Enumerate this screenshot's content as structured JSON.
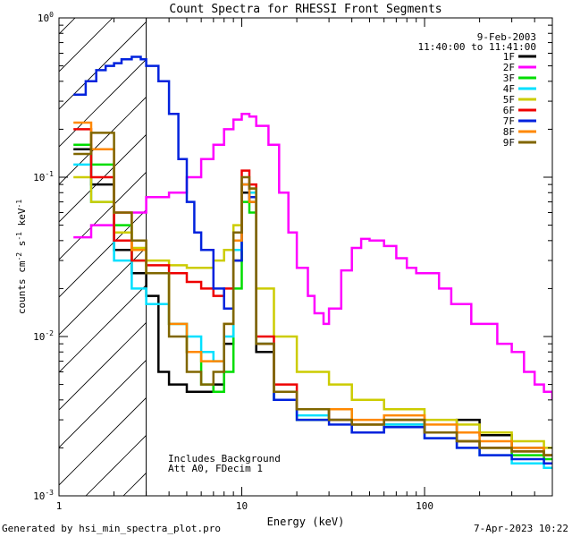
{
  "chart_data": {
    "type": "line",
    "title": "Count Spectra for RHESSI Front Segments",
    "xlabel": "Energy (keV)",
    "ylabel": "counts cm-2 s-1 keV-1",
    "xscale": "log",
    "yscale": "log",
    "xlim": [
      1,
      500
    ],
    "ylim": [
      0.001,
      1
    ],
    "x_ticks": [
      {
        "value": 1,
        "label": "1"
      },
      {
        "value": 10,
        "label": "10"
      },
      {
        "value": 100,
        "label": "100"
      }
    ],
    "y_ticks": [
      {
        "value": 1,
        "mant": "10",
        "exp": "0"
      },
      {
        "value": 0.1,
        "mant": "10",
        "exp": "-1"
      },
      {
        "value": 0.01,
        "mant": "10",
        "exp": "-2"
      },
      {
        "value": 0.001,
        "mant": "10",
        "exp": "-3"
      }
    ],
    "date": "9-Feb-2003",
    "time_range": "11:40:00 to 11:41:00",
    "hatched_region_max_energy": 3,
    "annotations": [
      "Includes Background",
      "Att A0, FDecim 1"
    ],
    "series": [
      {
        "name": "1F",
        "color": "#000000",
        "points": [
          [
            1.2,
            0.15
          ],
          [
            1.5,
            0.09
          ],
          [
            2,
            0.035
          ],
          [
            2.5,
            0.025
          ],
          [
            3,
            0.018
          ],
          [
            3.5,
            0.006
          ],
          [
            4,
            0.005
          ],
          [
            5,
            0.0045
          ],
          [
            6,
            0.0045
          ],
          [
            7,
            0.005
          ],
          [
            8,
            0.009
          ],
          [
            9,
            0.03
          ],
          [
            10,
            0.08
          ],
          [
            11,
            0.07
          ],
          [
            12,
            0.008
          ],
          [
            15,
            0.004
          ],
          [
            20,
            0.0035
          ],
          [
            30,
            0.003
          ],
          [
            40,
            0.0025
          ],
          [
            60,
            0.0028
          ],
          [
            100,
            0.0025
          ],
          [
            150,
            0.003
          ],
          [
            200,
            0.0024
          ],
          [
            300,
            0.002
          ],
          [
            450,
            0.0018
          ]
        ]
      },
      {
        "name": "2F",
        "color": "#ff00ff",
        "points": [
          [
            1.2,
            0.042
          ],
          [
            1.5,
            0.05
          ],
          [
            2,
            0.06
          ],
          [
            3,
            0.075
          ],
          [
            4,
            0.08
          ],
          [
            5,
            0.1
          ],
          [
            6,
            0.13
          ],
          [
            7,
            0.16
          ],
          [
            8,
            0.2
          ],
          [
            9,
            0.23
          ],
          [
            10,
            0.25
          ],
          [
            11,
            0.24
          ],
          [
            12,
            0.21
          ],
          [
            14,
            0.16
          ],
          [
            16,
            0.08
          ],
          [
            18,
            0.045
          ],
          [
            20,
            0.027
          ],
          [
            23,
            0.018
          ],
          [
            25,
            0.014
          ],
          [
            28,
            0.012
          ],
          [
            30,
            0.015
          ],
          [
            35,
            0.026
          ],
          [
            40,
            0.036
          ],
          [
            45,
            0.041
          ],
          [
            50,
            0.04
          ],
          [
            60,
            0.037
          ],
          [
            70,
            0.031
          ],
          [
            80,
            0.027
          ],
          [
            90,
            0.025
          ],
          [
            100,
            0.025
          ],
          [
            120,
            0.02
          ],
          [
            140,
            0.016
          ],
          [
            180,
            0.012
          ],
          [
            250,
            0.009
          ],
          [
            300,
            0.008
          ],
          [
            350,
            0.006
          ],
          [
            400,
            0.005
          ],
          [
            450,
            0.0045
          ],
          [
            500,
            0.004
          ]
        ]
      },
      {
        "name": "3F",
        "color": "#00dd00",
        "points": [
          [
            1.2,
            0.16
          ],
          [
            1.5,
            0.12
          ],
          [
            2,
            0.05
          ],
          [
            2.5,
            0.03
          ],
          [
            3,
            0.025
          ],
          [
            4,
            0.012
          ],
          [
            5,
            0.008
          ],
          [
            6,
            0.005
          ],
          [
            7,
            0.0045
          ],
          [
            8,
            0.006
          ],
          [
            9,
            0.02
          ],
          [
            10,
            0.07
          ],
          [
            11,
            0.06
          ],
          [
            12,
            0.009
          ],
          [
            15,
            0.004
          ],
          [
            20,
            0.003
          ],
          [
            30,
            0.0035
          ],
          [
            40,
            0.0028
          ],
          [
            60,
            0.003
          ],
          [
            100,
            0.0025
          ],
          [
            150,
            0.0022
          ],
          [
            200,
            0.002
          ],
          [
            300,
            0.0018
          ],
          [
            450,
            0.0017
          ]
        ]
      },
      {
        "name": "4F",
        "color": "#00e0ff",
        "points": [
          [
            1.2,
            0.12
          ],
          [
            1.5,
            0.07
          ],
          [
            2,
            0.03
          ],
          [
            2.5,
            0.02
          ],
          [
            3,
            0.016
          ],
          [
            4,
            0.012
          ],
          [
            5,
            0.01
          ],
          [
            6,
            0.008
          ],
          [
            7,
            0.007
          ],
          [
            8,
            0.01
          ],
          [
            9,
            0.035
          ],
          [
            10,
            0.09
          ],
          [
            11,
            0.08
          ],
          [
            12,
            0.009
          ],
          [
            15,
            0.004
          ],
          [
            20,
            0.0032
          ],
          [
            30,
            0.003
          ],
          [
            40,
            0.0025
          ],
          [
            60,
            0.0028
          ],
          [
            100,
            0.0023
          ],
          [
            150,
            0.002
          ],
          [
            200,
            0.0018
          ],
          [
            300,
            0.0016
          ],
          [
            450,
            0.0015
          ]
        ]
      },
      {
        "name": "5F",
        "color": "#cccc00",
        "points": [
          [
            1.2,
            0.1
          ],
          [
            1.5,
            0.07
          ],
          [
            2,
            0.045
          ],
          [
            2.5,
            0.036
          ],
          [
            3,
            0.03
          ],
          [
            4,
            0.028
          ],
          [
            5,
            0.027
          ],
          [
            6,
            0.027
          ],
          [
            7,
            0.03
          ],
          [
            8,
            0.035
          ],
          [
            9,
            0.05
          ],
          [
            10,
            0.09
          ],
          [
            11,
            0.085
          ],
          [
            12,
            0.02
          ],
          [
            15,
            0.01
          ],
          [
            20,
            0.006
          ],
          [
            30,
            0.005
          ],
          [
            40,
            0.004
          ],
          [
            60,
            0.0035
          ],
          [
            100,
            0.003
          ],
          [
            150,
            0.0028
          ],
          [
            200,
            0.0025
          ],
          [
            300,
            0.0022
          ],
          [
            450,
            0.002
          ]
        ]
      },
      {
        "name": "6F",
        "color": "#ee0000",
        "points": [
          [
            1.2,
            0.2
          ],
          [
            1.5,
            0.1
          ],
          [
            2,
            0.04
          ],
          [
            2.5,
            0.03
          ],
          [
            3,
            0.028
          ],
          [
            4,
            0.025
          ],
          [
            5,
            0.022
          ],
          [
            6,
            0.02
          ],
          [
            7,
            0.018
          ],
          [
            8,
            0.02
          ],
          [
            9,
            0.04
          ],
          [
            10,
            0.11
          ],
          [
            11,
            0.09
          ],
          [
            12,
            0.01
          ],
          [
            15,
            0.005
          ],
          [
            20,
            0.0035
          ],
          [
            30,
            0.003
          ],
          [
            40,
            0.0028
          ],
          [
            60,
            0.003
          ],
          [
            100,
            0.0025
          ],
          [
            150,
            0.0022
          ],
          [
            200,
            0.002
          ],
          [
            300,
            0.0019
          ],
          [
            450,
            0.0018
          ]
        ]
      },
      {
        "name": "7F",
        "color": "#0022dd",
        "points": [
          [
            1.2,
            0.33
          ],
          [
            1.4,
            0.4
          ],
          [
            1.6,
            0.47
          ],
          [
            1.8,
            0.5
          ],
          [
            2,
            0.52
          ],
          [
            2.2,
            0.55
          ],
          [
            2.5,
            0.57
          ],
          [
            2.8,
            0.55
          ],
          [
            3,
            0.5
          ],
          [
            3.5,
            0.4
          ],
          [
            4,
            0.25
          ],
          [
            4.5,
            0.13
          ],
          [
            5,
            0.07
          ],
          [
            5.5,
            0.045
          ],
          [
            6,
            0.035
          ],
          [
            7,
            0.02
          ],
          [
            8,
            0.015
          ],
          [
            9,
            0.03
          ],
          [
            10,
            0.09
          ],
          [
            11,
            0.075
          ],
          [
            12,
            0.009
          ],
          [
            15,
            0.004
          ],
          [
            20,
            0.003
          ],
          [
            30,
            0.0028
          ],
          [
            40,
            0.0025
          ],
          [
            60,
            0.0027
          ],
          [
            100,
            0.0023
          ],
          [
            150,
            0.002
          ],
          [
            200,
            0.0018
          ],
          [
            300,
            0.0017
          ],
          [
            450,
            0.0016
          ]
        ]
      },
      {
        "name": "8F",
        "color": "#ff8800",
        "points": [
          [
            1.2,
            0.22
          ],
          [
            1.5,
            0.15
          ],
          [
            2,
            0.06
          ],
          [
            2.5,
            0.035
          ],
          [
            3,
            0.025
          ],
          [
            4,
            0.012
          ],
          [
            5,
            0.008
          ],
          [
            6,
            0.007
          ],
          [
            7,
            0.007
          ],
          [
            8,
            0.012
          ],
          [
            9,
            0.04
          ],
          [
            10,
            0.09
          ],
          [
            11,
            0.07
          ],
          [
            12,
            0.009
          ],
          [
            15,
            0.0045
          ],
          [
            20,
            0.0035
          ],
          [
            30,
            0.0035
          ],
          [
            40,
            0.003
          ],
          [
            60,
            0.0032
          ],
          [
            100,
            0.0028
          ],
          [
            150,
            0.0025
          ],
          [
            200,
            0.0022
          ],
          [
            300,
            0.002
          ],
          [
            450,
            0.0018
          ]
        ]
      },
      {
        "name": "9F",
        "color": "#806600",
        "points": [
          [
            1.2,
            0.14
          ],
          [
            1.5,
            0.19
          ],
          [
            2,
            0.06
          ],
          [
            2.5,
            0.04
          ],
          [
            3,
            0.025
          ],
          [
            4,
            0.01
          ],
          [
            5,
            0.006
          ],
          [
            6,
            0.005
          ],
          [
            7,
            0.006
          ],
          [
            8,
            0.012
          ],
          [
            9,
            0.045
          ],
          [
            10,
            0.1
          ],
          [
            11,
            0.085
          ],
          [
            12,
            0.009
          ],
          [
            15,
            0.0045
          ],
          [
            20,
            0.0035
          ],
          [
            30,
            0.003
          ],
          [
            40,
            0.0028
          ],
          [
            60,
            0.003
          ],
          [
            100,
            0.0025
          ],
          [
            150,
            0.0022
          ],
          [
            200,
            0.002
          ],
          [
            300,
            0.0019
          ],
          [
            450,
            0.0018
          ]
        ]
      }
    ]
  },
  "footer": {
    "left": "Generated by hsi_min_spectra_plot.pro",
    "right": "7-Apr-2023 10:22"
  }
}
